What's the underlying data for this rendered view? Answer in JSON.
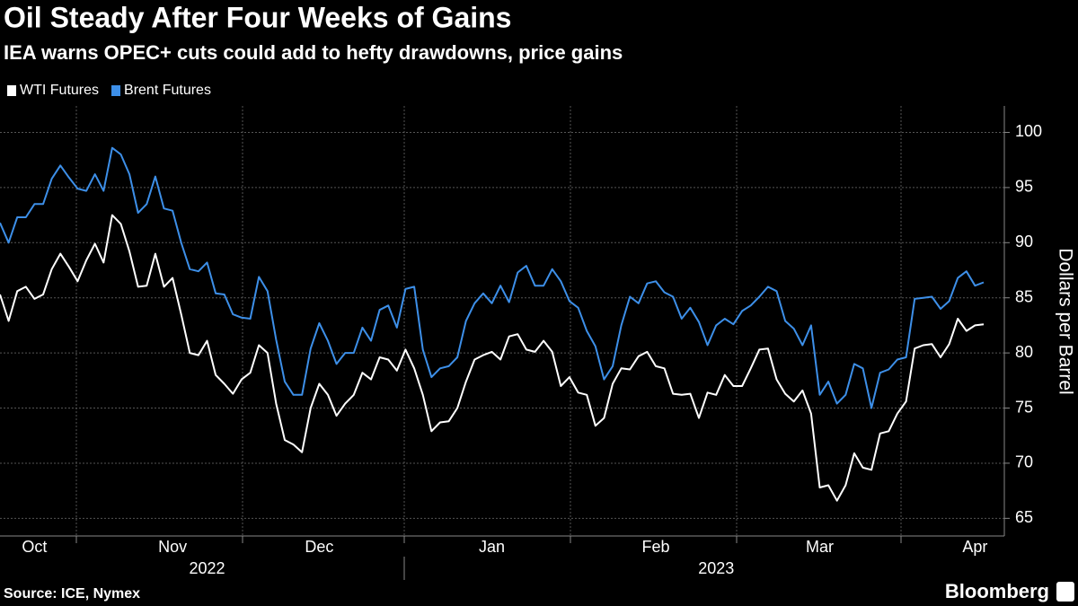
{
  "chart_data": {
    "type": "line",
    "title": "Oil Steady After Four Weeks of Gains",
    "subtitle": "IEA warns OPEC+ cuts could add to hefty drawdowns, price gains",
    "y_label": "Dollars per Barrel",
    "source": "Source: ICE, Nymex",
    "brand": "Bloomberg",
    "categories": [
      null,
      null,
      null,
      null,
      "Oct",
      null,
      null,
      null,
      null,
      null,
      null,
      null,
      null,
      null,
      null,
      null,
      null,
      null,
      null,
      null,
      "Nov",
      null,
      null,
      null,
      null,
      null,
      null,
      null,
      null,
      null,
      null,
      null,
      null,
      null,
      null,
      null,
      null,
      "Dec",
      null,
      null,
      null,
      null,
      null,
      null,
      null,
      null,
      null,
      null,
      null,
      null,
      null,
      null,
      null,
      null,
      null,
      null,
      null,
      "Jan",
      null,
      null,
      null,
      null,
      null,
      null,
      null,
      null,
      null,
      null,
      null,
      null,
      null,
      null,
      null,
      null,
      null,
      null,
      "Feb",
      null,
      null,
      null,
      null,
      null,
      null,
      null,
      null,
      null,
      null,
      null,
      null,
      null,
      null,
      null,
      null,
      null,
      null,
      "Mar",
      null,
      null,
      null,
      null,
      null,
      null,
      null,
      null,
      null,
      null,
      null,
      null,
      null,
      null,
      null,
      null,
      null,
      "Apr",
      null
    ],
    "years": [
      null,
      null,
      null,
      null,
      null,
      null,
      null,
      null,
      null,
      null,
      null,
      null,
      null,
      null,
      null,
      null,
      null,
      null,
      null,
      null,
      null,
      null,
      null,
      null,
      "2022",
      null,
      null,
      null,
      null,
      null,
      null,
      null,
      null,
      null,
      null,
      null,
      null,
      null,
      null,
      null,
      null,
      null,
      null,
      null,
      null,
      null,
      null,
      null,
      null,
      null,
      null,
      null,
      null,
      null,
      null,
      null,
      null,
      null,
      null,
      null,
      null,
      null,
      null,
      null,
      null,
      null,
      null,
      null,
      null,
      null,
      null,
      null,
      null,
      null,
      null,
      null,
      null,
      null,
      null,
      null,
      null,
      null,
      null,
      "2023",
      null,
      null,
      null,
      null,
      null,
      null,
      null,
      null,
      null,
      null,
      null,
      null,
      null,
      null,
      null,
      null,
      null,
      null,
      null,
      null,
      null,
      null,
      null,
      null,
      null,
      null,
      null,
      null,
      null,
      null,
      null
    ],
    "series": [
      {
        "name": "WTI Futures",
        "color": "#ffffff",
        "values": [
          85.3,
          82.9,
          85.6,
          86.0,
          84.9,
          85.3,
          87.6,
          89.0,
          87.8,
          86.5,
          88.4,
          89.9,
          88.2,
          92.5,
          91.7,
          89.2,
          86.0,
          86.1,
          89.0,
          86.0,
          86.8,
          83.5,
          80.0,
          79.8,
          81.1,
          78.0,
          77.2,
          76.3,
          77.6,
          78.2,
          80.7,
          80.0,
          75.4,
          72.1,
          71.7,
          71.0,
          75.0,
          77.2,
          76.2,
          74.3,
          75.4,
          76.2,
          78.2,
          77.6,
          79.6,
          79.4,
          78.4,
          80.3,
          78.6,
          76.2,
          72.9,
          73.7,
          73.8,
          75.0,
          77.4,
          79.4,
          79.8,
          80.1,
          79.4,
          81.5,
          81.7,
          80.3,
          80.1,
          81.1,
          80.1,
          77.0,
          77.8,
          76.4,
          76.2,
          73.4,
          74.1,
          77.2,
          78.6,
          78.5,
          79.7,
          80.1,
          78.8,
          78.6,
          76.3,
          76.2,
          76.3,
          74.1,
          76.4,
          76.2,
          78.0,
          77.0,
          77.0,
          78.6,
          80.3,
          80.4,
          77.6,
          76.3,
          75.6,
          76.6,
          74.5,
          67.8,
          68.0,
          66.6,
          68.0,
          70.9,
          69.6,
          69.4,
          72.7,
          72.9,
          74.5,
          75.6,
          80.4,
          80.7,
          80.8,
          79.6,
          80.8,
          83.1,
          82.0,
          82.5,
          82.6
        ]
      },
      {
        "name": "Brent Futures",
        "color": "#3d8fe8",
        "values": [
          91.8,
          90.0,
          92.3,
          92.3,
          93.5,
          93.5,
          95.8,
          97.0,
          95.9,
          94.9,
          94.7,
          96.2,
          94.7,
          98.6,
          98.0,
          96.2,
          92.7,
          93.5,
          96.0,
          93.1,
          92.9,
          90.0,
          87.6,
          87.4,
          88.2,
          85.4,
          85.3,
          83.5,
          83.2,
          83.1,
          86.9,
          85.6,
          81.2,
          77.4,
          76.2,
          76.2,
          80.4,
          82.7,
          81.1,
          79.0,
          80.0,
          80.0,
          82.3,
          81.1,
          83.9,
          84.3,
          82.3,
          85.8,
          86.0,
          80.3,
          77.8,
          78.6,
          78.8,
          79.6,
          82.9,
          84.5,
          85.4,
          84.5,
          86.1,
          84.6,
          87.3,
          87.9,
          86.1,
          86.1,
          87.6,
          86.5,
          84.7,
          84.1,
          82.0,
          80.6,
          77.6,
          78.8,
          82.5,
          85.1,
          84.5,
          86.3,
          86.5,
          85.5,
          85.1,
          83.1,
          84.1,
          82.8,
          80.7,
          82.5,
          83.1,
          82.6,
          83.8,
          84.3,
          85.1,
          86.0,
          85.6,
          82.9,
          82.2,
          80.7,
          82.5,
          76.2,
          77.4,
          75.4,
          76.2,
          79.0,
          78.6,
          75.0,
          78.2,
          78.5,
          79.4,
          79.6,
          84.9,
          85.0,
          85.1,
          84.0,
          84.7,
          86.8,
          87.4,
          86.1,
          86.4
        ]
      }
    ],
    "ylim": [
      63.4,
      102.4
    ],
    "yticks": [
      65,
      70,
      75,
      80,
      85,
      90,
      95,
      100
    ],
    "grid": true
  }
}
